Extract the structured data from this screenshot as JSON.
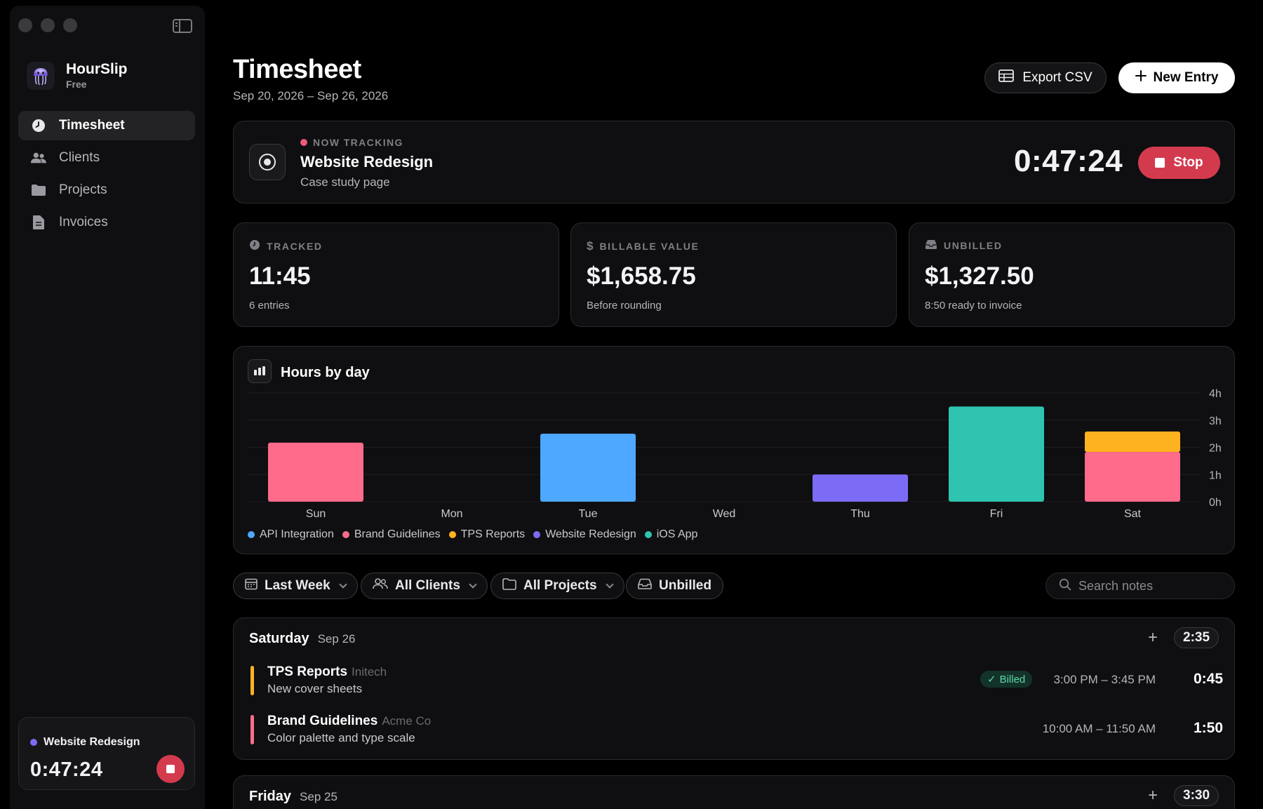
{
  "app": {
    "name": "HourSlip",
    "plan": "Free"
  },
  "sidebar": {
    "items": [
      {
        "label": "Timesheet",
        "icon": "clock-icon",
        "active": true
      },
      {
        "label": "Clients",
        "icon": "users-icon",
        "active": false
      },
      {
        "label": "Projects",
        "icon": "folder-icon",
        "active": false
      },
      {
        "label": "Invoices",
        "icon": "document-icon",
        "active": false
      }
    ],
    "mini_tracker": {
      "project": "Website Redesign",
      "time": "0:47:24",
      "color": "#7c6cf5"
    }
  },
  "header": {
    "title": "Timesheet",
    "range": "Sep 20, 2026 – Sep 26, 2026",
    "export_label": "Export CSV",
    "new_entry_label": "New Entry"
  },
  "now_tracking": {
    "label": "NOW TRACKING",
    "project": "Website Redesign",
    "note": "Case study page",
    "time": "0:47:24",
    "stop_label": "Stop",
    "dot_color": "#ef5a7a"
  },
  "stats": [
    {
      "label": "TRACKED",
      "icon": "clock-icon",
      "value": "11:45",
      "sub": "6 entries"
    },
    {
      "label": "BILLABLE VALUE",
      "icon": "dollar-icon",
      "value": "$1,658.75",
      "sub": "Before rounding"
    },
    {
      "label": "UNBILLED",
      "icon": "inbox-icon",
      "value": "$1,327.50",
      "sub": "8:50 ready to invoice"
    }
  ],
  "chart_title": "Hours by day",
  "chart_data": {
    "type": "bar",
    "stacked": true,
    "categories": [
      "Sun",
      "Mon",
      "Tue",
      "Wed",
      "Thu",
      "Fri",
      "Sat"
    ],
    "series": [
      {
        "name": "API Integration",
        "color": "#4ea8ff",
        "values": [
          0,
          0,
          2.5,
          0,
          0,
          0,
          0
        ]
      },
      {
        "name": "Brand Guidelines",
        "color": "#ff6b8b",
        "values": [
          2.17,
          0,
          0,
          0,
          0,
          0,
          1.83
        ]
      },
      {
        "name": "TPS Reports",
        "color": "#ffb21f",
        "values": [
          0,
          0,
          0,
          0,
          0,
          0,
          0.75
        ]
      },
      {
        "name": "Website Redesign",
        "color": "#7c6cf5",
        "values": [
          0,
          0,
          0,
          0,
          1.0,
          0,
          0
        ]
      },
      {
        "name": "iOS App",
        "color": "#2ec4b0",
        "values": [
          0,
          0,
          0,
          0,
          0,
          3.5,
          0
        ]
      }
    ],
    "yticks": [
      "0h",
      "1h",
      "2h",
      "3h",
      "4h"
    ],
    "ylim": [
      0,
      4
    ],
    "grid": true,
    "legend": "bottom-left"
  },
  "filters": {
    "range": "Last Week",
    "clients": "All Clients",
    "projects": "All Projects",
    "billing": "Unbilled",
    "search_placeholder": "Search notes"
  },
  "days": [
    {
      "name": "Saturday",
      "date": "Sep 26",
      "total": "2:35",
      "entries": [
        {
          "project": "TPS Reports",
          "client": "Initech",
          "note": "New cover sheets",
          "badge": "Billed",
          "range": "3:00 PM – 3:45 PM",
          "duration": "0:45",
          "color": "#ffb21f"
        },
        {
          "project": "Brand Guidelines",
          "client": "Acme Co",
          "note": "Color palette and type scale",
          "badge": "",
          "range": "10:00 AM – 11:50 AM",
          "duration": "1:50",
          "color": "#ff6b8b"
        }
      ]
    },
    {
      "name": "Friday",
      "date": "Sep 25",
      "total": "3:30",
      "entries": []
    }
  ]
}
